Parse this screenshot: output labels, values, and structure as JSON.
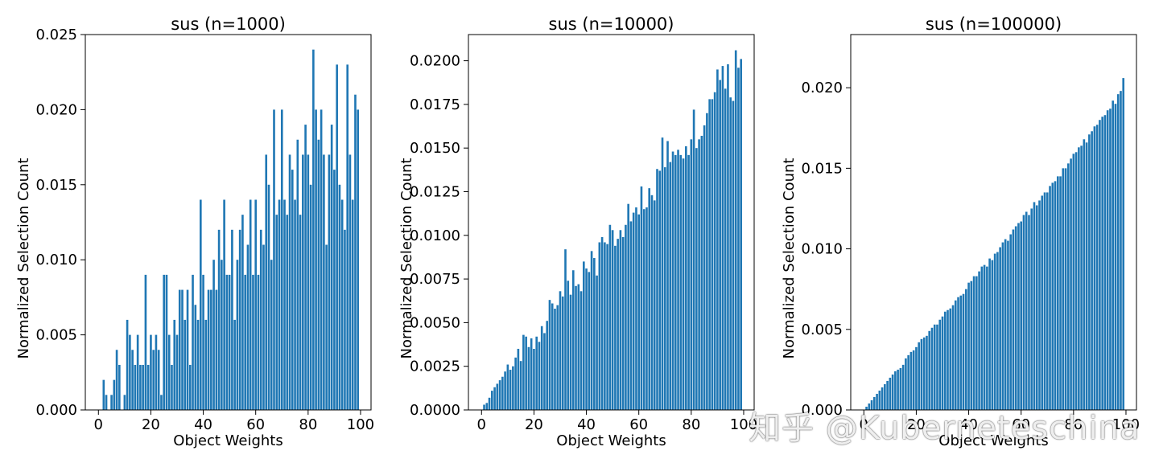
{
  "watermark": "知乎 @Kuberneteschina",
  "chart_data": [
    {
      "type": "bar",
      "title": "sus (n=1000)",
      "xlabel": "Object Weights",
      "ylabel": "Normalized Selection Count",
      "xlim": [
        -5,
        104
      ],
      "ylim": [
        0,
        0.025
      ],
      "xticks": [
        "0",
        "20",
        "40",
        "60",
        "80",
        "100"
      ],
      "yticks": [
        "0.000",
        "0.005",
        "0.010",
        "0.015",
        "0.020",
        "0.025"
      ],
      "color": "#1f77b4",
      "x": [
        1,
        2,
        3,
        4,
        5,
        6,
        7,
        8,
        9,
        10,
        11,
        12,
        13,
        14,
        15,
        16,
        17,
        18,
        19,
        20,
        21,
        22,
        23,
        24,
        25,
        26,
        27,
        28,
        29,
        30,
        31,
        32,
        33,
        34,
        35,
        36,
        37,
        38,
        39,
        40,
        41,
        42,
        43,
        44,
        45,
        46,
        47,
        48,
        49,
        50,
        51,
        52,
        53,
        54,
        55,
        56,
        57,
        58,
        59,
        60,
        61,
        62,
        63,
        64,
        65,
        66,
        67,
        68,
        69,
        70,
        71,
        72,
        73,
        74,
        75,
        76,
        77,
        78,
        79,
        80,
        81,
        82,
        83,
        84,
        85,
        86,
        87,
        88,
        89,
        90,
        91,
        92,
        93,
        94,
        95,
        96,
        97,
        98,
        99
      ],
      "values": [
        0.0,
        0.002,
        0.001,
        0.0,
        0.001,
        0.002,
        0.004,
        0.003,
        0.0,
        0.001,
        0.006,
        0.005,
        0.004,
        0.003,
        0.005,
        0.003,
        0.003,
        0.009,
        0.003,
        0.005,
        0.004,
        0.005,
        0.004,
        0.001,
        0.009,
        0.009,
        0.005,
        0.003,
        0.006,
        0.005,
        0.008,
        0.008,
        0.006,
        0.008,
        0.003,
        0.009,
        0.007,
        0.006,
        0.014,
        0.009,
        0.006,
        0.008,
        0.008,
        0.01,
        0.008,
        0.012,
        0.01,
        0.014,
        0.009,
        0.009,
        0.012,
        0.006,
        0.01,
        0.012,
        0.013,
        0.009,
        0.011,
        0.014,
        0.009,
        0.014,
        0.009,
        0.012,
        0.011,
        0.017,
        0.015,
        0.01,
        0.02,
        0.013,
        0.014,
        0.02,
        0.014,
        0.013,
        0.017,
        0.016,
        0.014,
        0.018,
        0.013,
        0.017,
        0.019,
        0.017,
        0.015,
        0.024,
        0.02,
        0.018,
        0.02,
        0.017,
        0.011,
        0.017,
        0.019,
        0.016,
        0.023,
        0.015,
        0.014,
        0.012,
        0.023,
        0.017,
        0.014,
        0.021,
        0.02
      ]
    },
    {
      "type": "bar",
      "title": "sus (n=10000)",
      "xlabel": "Object Weights",
      "ylabel": "Normalized Selection Count",
      "xlim": [
        -5,
        104
      ],
      "ylim": [
        0,
        0.0215
      ],
      "xticks": [
        "0",
        "20",
        "40",
        "60",
        "80",
        "100"
      ],
      "yticks": [
        "0.0000",
        "0.0025",
        "0.0050",
        "0.0075",
        "0.0100",
        "0.0125",
        "0.0150",
        "0.0175",
        "0.0200"
      ],
      "color": "#1f77b4",
      "x": [
        1,
        2,
        3,
        4,
        5,
        6,
        7,
        8,
        9,
        10,
        11,
        12,
        13,
        14,
        15,
        16,
        17,
        18,
        19,
        20,
        21,
        22,
        23,
        24,
        25,
        26,
        27,
        28,
        29,
        30,
        31,
        32,
        33,
        34,
        35,
        36,
        37,
        38,
        39,
        40,
        41,
        42,
        43,
        44,
        45,
        46,
        47,
        48,
        49,
        50,
        51,
        52,
        53,
        54,
        55,
        56,
        57,
        58,
        59,
        60,
        61,
        62,
        63,
        64,
        65,
        66,
        67,
        68,
        69,
        70,
        71,
        72,
        73,
        74,
        75,
        76,
        77,
        78,
        79,
        80,
        81,
        82,
        83,
        84,
        85,
        86,
        87,
        88,
        89,
        90,
        91,
        92,
        93,
        94,
        95,
        96,
        97,
        98,
        99
      ],
      "values": [
        0.0003,
        0.0004,
        0.0007,
        0.0011,
        0.0013,
        0.0015,
        0.0017,
        0.0019,
        0.0022,
        0.0026,
        0.0023,
        0.0025,
        0.003,
        0.0035,
        0.0028,
        0.0043,
        0.0042,
        0.0036,
        0.0041,
        0.0035,
        0.0042,
        0.0039,
        0.0048,
        0.0044,
        0.0051,
        0.0063,
        0.0061,
        0.0058,
        0.006,
        0.0068,
        0.0065,
        0.0092,
        0.0074,
        0.0066,
        0.008,
        0.0071,
        0.0072,
        0.0068,
        0.0085,
        0.0081,
        0.0079,
        0.0091,
        0.0087,
        0.0077,
        0.0096,
        0.0099,
        0.0096,
        0.0095,
        0.0106,
        0.0103,
        0.0094,
        0.0098,
        0.0103,
        0.0099,
        0.0106,
        0.0118,
        0.0108,
        0.0113,
        0.0116,
        0.0112,
        0.0128,
        0.0115,
        0.0116,
        0.0127,
        0.0123,
        0.012,
        0.0138,
        0.0137,
        0.0156,
        0.0139,
        0.0154,
        0.0142,
        0.0148,
        0.0146,
        0.0149,
        0.0146,
        0.0144,
        0.0151,
        0.0146,
        0.0155,
        0.0172,
        0.015,
        0.0155,
        0.0157,
        0.0163,
        0.017,
        0.0178,
        0.0178,
        0.0182,
        0.0195,
        0.0189,
        0.0197,
        0.0184,
        0.0198,
        0.0179,
        0.0177,
        0.0206,
        0.0196,
        0.0201
      ]
    },
    {
      "type": "bar",
      "title": "sus (n=100000)",
      "xlabel": "Object Weights",
      "ylabel": "Normalized Selection Count",
      "xlim": [
        -5,
        104
      ],
      "ylim": [
        0,
        0.0233
      ],
      "xticks": [
        "0",
        "20",
        "40",
        "60",
        "80",
        "100"
      ],
      "yticks": [
        "0.000",
        "0.005",
        "0.010",
        "0.015",
        "0.020"
      ],
      "color": "#1f77b4",
      "x": [
        1,
        2,
        3,
        4,
        5,
        6,
        7,
        8,
        9,
        10,
        11,
        12,
        13,
        14,
        15,
        16,
        17,
        18,
        19,
        20,
        21,
        22,
        23,
        24,
        25,
        26,
        27,
        28,
        29,
        30,
        31,
        32,
        33,
        34,
        35,
        36,
        37,
        38,
        39,
        40,
        41,
        42,
        43,
        44,
        45,
        46,
        47,
        48,
        49,
        50,
        51,
        52,
        53,
        54,
        55,
        56,
        57,
        58,
        59,
        60,
        61,
        62,
        63,
        64,
        65,
        66,
        67,
        68,
        69,
        70,
        71,
        72,
        73,
        74,
        75,
        76,
        77,
        78,
        79,
        80,
        81,
        82,
        83,
        84,
        85,
        86,
        87,
        88,
        89,
        90,
        91,
        92,
        93,
        94,
        95,
        96,
        97,
        98,
        99
      ],
      "values": [
        0.0002,
        0.0004,
        0.0006,
        0.0008,
        0.001,
        0.0012,
        0.0014,
        0.0016,
        0.0018,
        0.002,
        0.0022,
        0.0024,
        0.0025,
        0.0026,
        0.0028,
        0.0032,
        0.0034,
        0.0036,
        0.0037,
        0.0039,
        0.0042,
        0.0044,
        0.0045,
        0.0046,
        0.0049,
        0.0051,
        0.0053,
        0.0053,
        0.0056,
        0.0058,
        0.0061,
        0.0062,
        0.0063,
        0.0065,
        0.0068,
        0.007,
        0.0071,
        0.0072,
        0.0075,
        0.0079,
        0.008,
        0.0083,
        0.0083,
        0.0086,
        0.0089,
        0.009,
        0.0089,
        0.0094,
        0.0093,
        0.0097,
        0.0098,
        0.0101,
        0.0104,
        0.0106,
        0.0105,
        0.0109,
        0.0112,
        0.0114,
        0.0116,
        0.0117,
        0.0121,
        0.0123,
        0.0121,
        0.0125,
        0.0129,
        0.0127,
        0.013,
        0.0133,
        0.0135,
        0.0135,
        0.0139,
        0.0141,
        0.0142,
        0.0145,
        0.0145,
        0.015,
        0.015,
        0.0153,
        0.0156,
        0.0159,
        0.016,
        0.0163,
        0.0164,
        0.0168,
        0.0166,
        0.0171,
        0.0173,
        0.0176,
        0.0177,
        0.018,
        0.0182,
        0.0183,
        0.0186,
        0.0187,
        0.0192,
        0.019,
        0.0196,
        0.0198,
        0.0206
      ]
    }
  ]
}
